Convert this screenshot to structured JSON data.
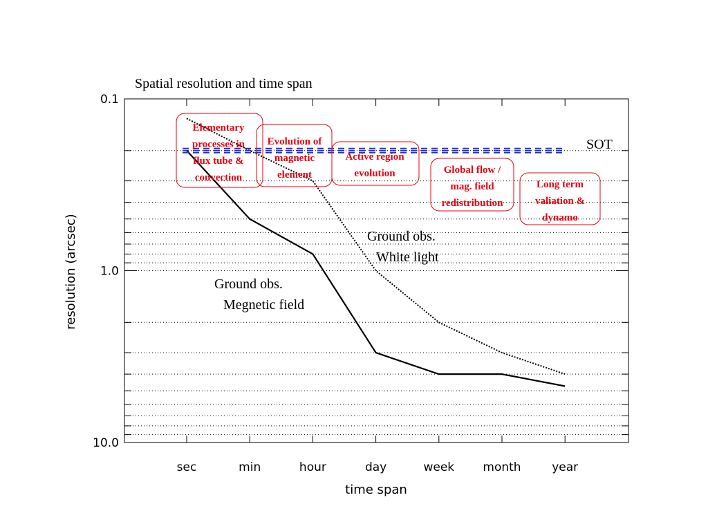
{
  "chart_data": {
    "type": "line",
    "title": "Spatial resolution and time span",
    "xlabel": "time span",
    "ylabel": "resolution (arcsec)",
    "y_scale": "log",
    "y_inverted": true,
    "ylim": [
      0.1,
      10.0
    ],
    "y_tick_labels": [
      "0.1",
      "1.0",
      "10.0"
    ],
    "y_minor_ticks": [
      0.2,
      0.3,
      0.4,
      0.5,
      0.6,
      0.7,
      0.8,
      0.9,
      2,
      3,
      4,
      5,
      6,
      7,
      8,
      9
    ],
    "grid": "horizontal dotted",
    "categories": [
      "sec",
      "min",
      "hour",
      "day",
      "week",
      "month",
      "year"
    ],
    "series": [
      {
        "label": "Ground obs.\nMegnetic field",
        "style": "solid",
        "color": "#000000",
        "values": [
          0.2,
          0.5,
          0.8,
          3.0,
          4.0,
          4.0,
          4.7
        ]
      },
      {
        "label": "Ground obs.\nWhite light",
        "style": "dotted",
        "color": "#000000",
        "values": [
          0.13,
          0.2,
          0.3,
          1.0,
          2.0,
          3.0,
          4.0
        ]
      },
      {
        "label": "SOT",
        "style": "dashed",
        "color": "#2233cc",
        "values": [
          0.2,
          0.2,
          0.2,
          0.2,
          0.2,
          0.2,
          0.2
        ]
      }
    ],
    "annotations": [
      {
        "text": "Elementary processes in flux tube & convection",
        "lines": [
          "Elementary",
          "processes in",
          "flux tube &",
          "convection"
        ],
        "color": "#e8000e"
      },
      {
        "text": "Evolution of magnetic element",
        "lines": [
          "Evolution of",
          "magnetic",
          "element"
        ],
        "color": "#e8000e"
      },
      {
        "text": "Active region evolution",
        "lines": [
          "Active region",
          "evolution"
        ],
        "color": "#e8000e"
      },
      {
        "text": "Global flow / mag. field redistribution",
        "lines": [
          "Global flow /",
          "mag. field",
          "redistribution"
        ],
        "color": "#e8000e"
      },
      {
        "text": "Long term valiation & dynamo",
        "lines": [
          "Long term",
          "valiation &",
          "dynamo"
        ],
        "color": "#e8000e"
      }
    ]
  }
}
